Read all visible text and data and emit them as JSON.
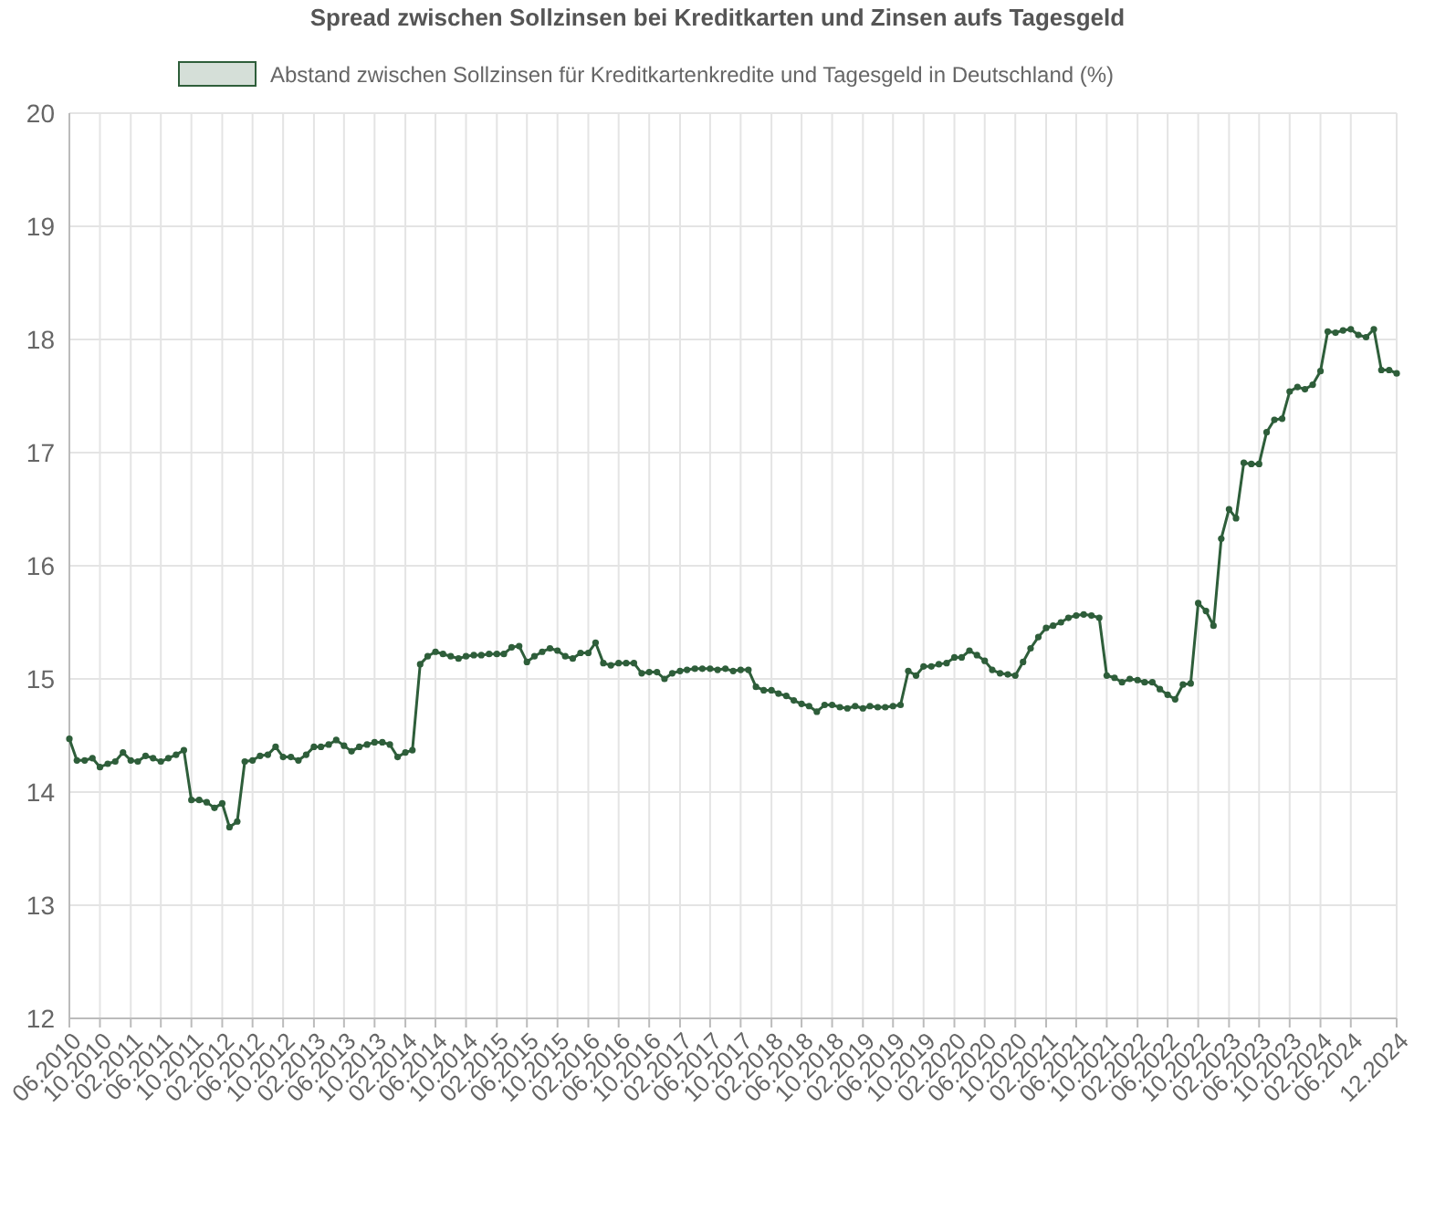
{
  "chart_data": {
    "type": "line",
    "title": "Spread zwischen Sollzinsen bei Kreditkarten und Zinsen aufs Tagesgeld",
    "x": [
      "2010-06",
      "2010-07",
      "2010-08",
      "2010-09",
      "2010-10",
      "2010-11",
      "2010-12",
      "2011-01",
      "2011-02",
      "2011-03",
      "2011-04",
      "2011-05",
      "2011-06",
      "2011-07",
      "2011-08",
      "2011-09",
      "2011-10",
      "2011-11",
      "2011-12",
      "2012-01",
      "2012-02",
      "2012-03",
      "2012-04",
      "2012-05",
      "2012-06",
      "2012-07",
      "2012-08",
      "2012-09",
      "2012-10",
      "2012-11",
      "2012-12",
      "2013-01",
      "2013-02",
      "2013-03",
      "2013-04",
      "2013-05",
      "2013-06",
      "2013-07",
      "2013-08",
      "2013-09",
      "2013-10",
      "2013-11",
      "2013-12",
      "2014-01",
      "2014-02",
      "2014-03",
      "2014-04",
      "2014-05",
      "2014-06",
      "2014-07",
      "2014-08",
      "2014-09",
      "2014-10",
      "2014-11",
      "2014-12",
      "2015-01",
      "2015-02",
      "2015-03",
      "2015-04",
      "2015-05",
      "2015-06",
      "2015-07",
      "2015-08",
      "2015-09",
      "2015-10",
      "2015-11",
      "2015-12",
      "2016-01",
      "2016-02",
      "2016-03",
      "2016-04",
      "2016-05",
      "2016-06",
      "2016-07",
      "2016-08",
      "2016-09",
      "2016-10",
      "2016-11",
      "2016-12",
      "2017-01",
      "2017-02",
      "2017-03",
      "2017-04",
      "2017-05",
      "2017-06",
      "2017-07",
      "2017-08",
      "2017-09",
      "2017-10",
      "2017-11",
      "2017-12",
      "2018-01",
      "2018-02",
      "2018-03",
      "2018-04",
      "2018-05",
      "2018-06",
      "2018-07",
      "2018-08",
      "2018-09",
      "2018-10",
      "2018-11",
      "2018-12",
      "2019-01",
      "2019-02",
      "2019-03",
      "2019-04",
      "2019-05",
      "2019-06",
      "2019-07",
      "2019-08",
      "2019-09",
      "2019-10",
      "2019-11",
      "2019-12",
      "2020-01",
      "2020-02",
      "2020-03",
      "2020-04",
      "2020-05",
      "2020-06",
      "2020-07",
      "2020-08",
      "2020-09",
      "2020-10",
      "2020-11",
      "2020-12",
      "2021-01",
      "2021-02",
      "2021-03",
      "2021-04",
      "2021-05",
      "2021-06",
      "2021-07",
      "2021-08",
      "2021-09",
      "2021-10",
      "2021-11",
      "2021-12",
      "2022-01",
      "2022-02",
      "2022-03",
      "2022-04",
      "2022-05",
      "2022-06",
      "2022-07",
      "2022-08",
      "2022-09",
      "2022-10",
      "2022-11",
      "2022-12",
      "2023-01",
      "2023-02",
      "2023-03",
      "2023-04",
      "2023-05",
      "2023-06",
      "2023-07",
      "2023-08",
      "2023-09",
      "2023-10",
      "2023-11",
      "2023-12",
      "2024-01",
      "2024-02",
      "2024-03",
      "2024-04",
      "2024-05",
      "2024-06",
      "2024-07",
      "2024-08",
      "2024-09",
      "2024-10",
      "2024-11",
      "2024-12"
    ],
    "series": [
      {
        "name": "Abstand zwischen Sollzinsen für Kreditkartenkredite und Tagesgeld in Deutschland (%)",
        "color": "#2e5e3a",
        "values": [
          14.47,
          14.28,
          14.28,
          14.3,
          14.22,
          14.25,
          14.27,
          14.35,
          14.28,
          14.27,
          14.32,
          14.3,
          14.27,
          14.3,
          14.33,
          14.37,
          13.93,
          13.93,
          13.91,
          13.86,
          13.9,
          13.69,
          13.74,
          14.27,
          14.28,
          14.32,
          14.33,
          14.4,
          14.31,
          14.31,
          14.28,
          14.33,
          14.4,
          14.4,
          14.42,
          14.46,
          14.41,
          14.36,
          14.4,
          14.42,
          14.44,
          14.44,
          14.42,
          14.31,
          14.35,
          14.37,
          15.13,
          15.2,
          15.24,
          15.22,
          15.2,
          15.18,
          15.2,
          15.21,
          15.21,
          15.22,
          15.22,
          15.22,
          15.28,
          15.29,
          15.15,
          15.2,
          15.24,
          15.27,
          15.25,
          15.2,
          15.18,
          15.23,
          15.23,
          15.32,
          15.14,
          15.12,
          15.14,
          15.14,
          15.14,
          15.05,
          15.06,
          15.06,
          15.0,
          15.05,
          15.07,
          15.08,
          15.09,
          15.09,
          15.09,
          15.08,
          15.09,
          15.07,
          15.08,
          15.08,
          14.93,
          14.9,
          14.9,
          14.87,
          14.85,
          14.81,
          14.78,
          14.76,
          14.71,
          14.77,
          14.77,
          14.75,
          14.74,
          14.76,
          14.74,
          14.76,
          14.75,
          14.75,
          14.76,
          14.77,
          15.07,
          15.03,
          15.11,
          15.11,
          15.13,
          15.14,
          15.19,
          15.19,
          15.25,
          15.21,
          15.16,
          15.08,
          15.05,
          15.04,
          15.03,
          15.15,
          15.27,
          15.37,
          15.45,
          15.47,
          15.5,
          15.54,
          15.56,
          15.57,
          15.56,
          15.54,
          15.03,
          15.01,
          14.97,
          15.0,
          14.99,
          14.97,
          14.97,
          14.91,
          14.86,
          14.82,
          14.95,
          14.96,
          15.67,
          15.6,
          15.47,
          16.24,
          16.5,
          16.42,
          16.91,
          16.9,
          16.9,
          17.18,
          17.29,
          17.3,
          17.54,
          17.58,
          17.56,
          17.6,
          17.72,
          18.07,
          18.06,
          18.08,
          18.09,
          18.04,
          18.02,
          18.09,
          17.73,
          17.73,
          17.7
        ]
      }
    ],
    "xlim": [
      "2010-06",
      "2024-12"
    ],
    "xticks": [
      {
        "value": "2010-06",
        "label": "06.2010"
      },
      {
        "value": "2010-10",
        "label": "10.2010"
      },
      {
        "value": "2011-02",
        "label": "02.2011"
      },
      {
        "value": "2011-06",
        "label": "06.2011"
      },
      {
        "value": "2011-10",
        "label": "10.2011"
      },
      {
        "value": "2012-02",
        "label": "02.2012"
      },
      {
        "value": "2012-06",
        "label": "06.2012"
      },
      {
        "value": "2012-10",
        "label": "10.2012"
      },
      {
        "value": "2013-02",
        "label": "02.2013"
      },
      {
        "value": "2013-06",
        "label": "06.2013"
      },
      {
        "value": "2013-10",
        "label": "10.2013"
      },
      {
        "value": "2014-02",
        "label": "02.2014"
      },
      {
        "value": "2014-06",
        "label": "06.2014"
      },
      {
        "value": "2014-10",
        "label": "10.2014"
      },
      {
        "value": "2015-02",
        "label": "02.2015"
      },
      {
        "value": "2015-06",
        "label": "06.2015"
      },
      {
        "value": "2015-10",
        "label": "10.2015"
      },
      {
        "value": "2016-02",
        "label": "02.2016"
      },
      {
        "value": "2016-06",
        "label": "06.2016"
      },
      {
        "value": "2016-10",
        "label": "10.2016"
      },
      {
        "value": "2017-02",
        "label": "02.2017"
      },
      {
        "value": "2017-06",
        "label": "06.2017"
      },
      {
        "value": "2017-10",
        "label": "10.2017"
      },
      {
        "value": "2018-02",
        "label": "02.2018"
      },
      {
        "value": "2018-06",
        "label": "06.2018"
      },
      {
        "value": "2018-10",
        "label": "10.2018"
      },
      {
        "value": "2019-02",
        "label": "02.2019"
      },
      {
        "value": "2019-06",
        "label": "06.2019"
      },
      {
        "value": "2019-10",
        "label": "10.2019"
      },
      {
        "value": "2020-02",
        "label": "02.2020"
      },
      {
        "value": "2020-06",
        "label": "06.2020"
      },
      {
        "value": "2020-10",
        "label": "10.2020"
      },
      {
        "value": "2021-02",
        "label": "02.2021"
      },
      {
        "value": "2021-06",
        "label": "06.2021"
      },
      {
        "value": "2021-10",
        "label": "10.2021"
      },
      {
        "value": "2022-02",
        "label": "02.2022"
      },
      {
        "value": "2022-06",
        "label": "06.2022"
      },
      {
        "value": "2022-10",
        "label": "10.2022"
      },
      {
        "value": "2023-02",
        "label": "02.2023"
      },
      {
        "value": "2023-06",
        "label": "06.2023"
      },
      {
        "value": "2023-10",
        "label": "10.2023"
      },
      {
        "value": "2024-02",
        "label": "02.2024"
      },
      {
        "value": "2024-06",
        "label": "06.2024"
      },
      {
        "value": "2024-12",
        "label": "12.2024"
      }
    ],
    "ylim": [
      12,
      20
    ],
    "yticks": [
      12,
      13,
      14,
      15,
      16,
      17,
      18,
      19,
      20
    ],
    "grid": true,
    "legend": "top",
    "marker": "circle",
    "line_style": "solid"
  }
}
